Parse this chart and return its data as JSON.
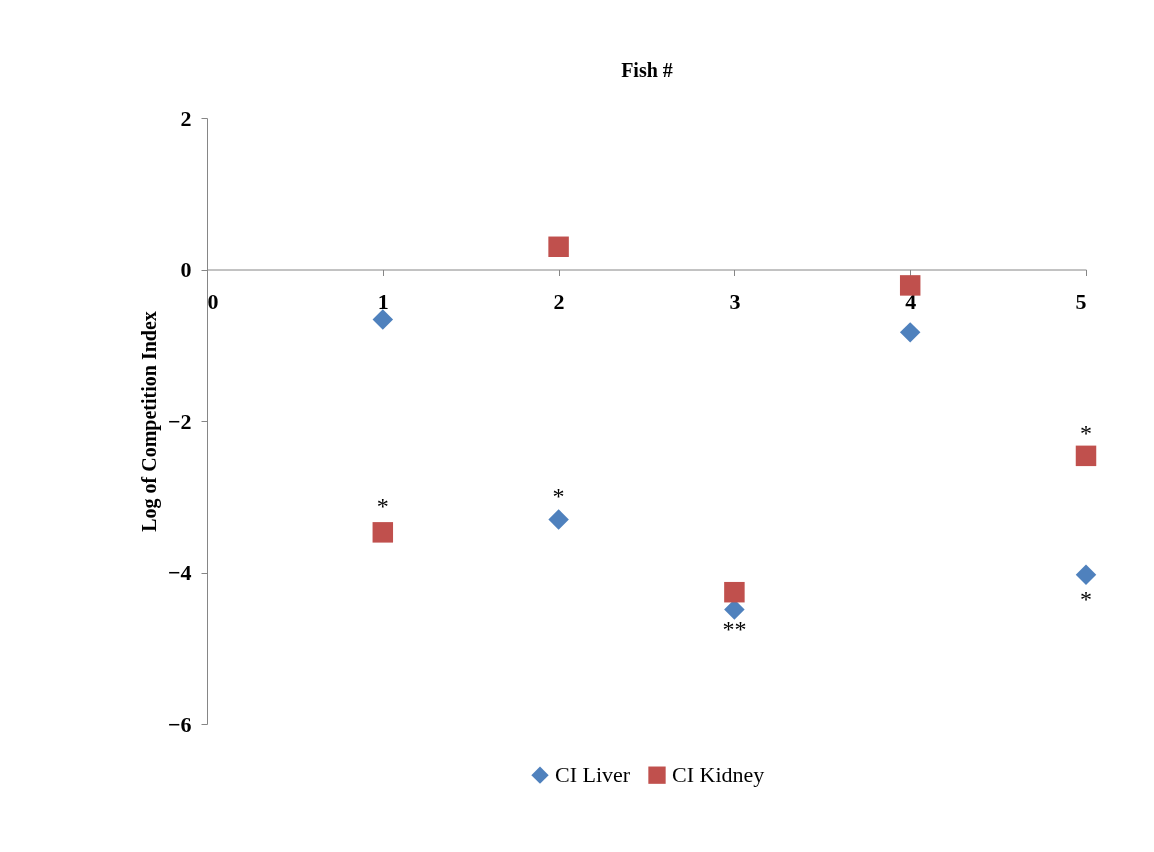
{
  "chart_data": {
    "type": "scatter",
    "xlabel": "Fish #",
    "ylabel": "Log of Competition Index",
    "x": [
      1,
      2,
      3,
      4,
      5
    ],
    "series": [
      {
        "name": "CI Liver",
        "color": "#4f81bd",
        "marker": "diamond",
        "values": [
          -0.66,
          -3.3,
          -4.49,
          -0.83,
          -4.03
        ]
      },
      {
        "name": "CI Kidney",
        "color": "#c0504d",
        "marker": "square",
        "values": [
          -3.47,
          0.3,
          -4.26,
          -0.21,
          -2.46
        ]
      }
    ],
    "xlim": [
      0,
      5
    ],
    "xticks": [
      0,
      1,
      2,
      3,
      4,
      5
    ],
    "ylim": [
      -6,
      2
    ],
    "yticks": [
      -6,
      -4,
      -2,
      0,
      2
    ],
    "grid": false,
    "legend": "bottom",
    "annotations": [
      {
        "text": "*",
        "x": 1,
        "y": -3.3
      },
      {
        "text": "*",
        "x": 2,
        "y": -3.3
      },
      {
        "text": "**",
        "x": 3,
        "y": -4.6
      },
      {
        "text": "*",
        "x": 5,
        "y": -2.46
      },
      {
        "text": "*",
        "x": 5,
        "y": -4.2
      }
    ]
  }
}
